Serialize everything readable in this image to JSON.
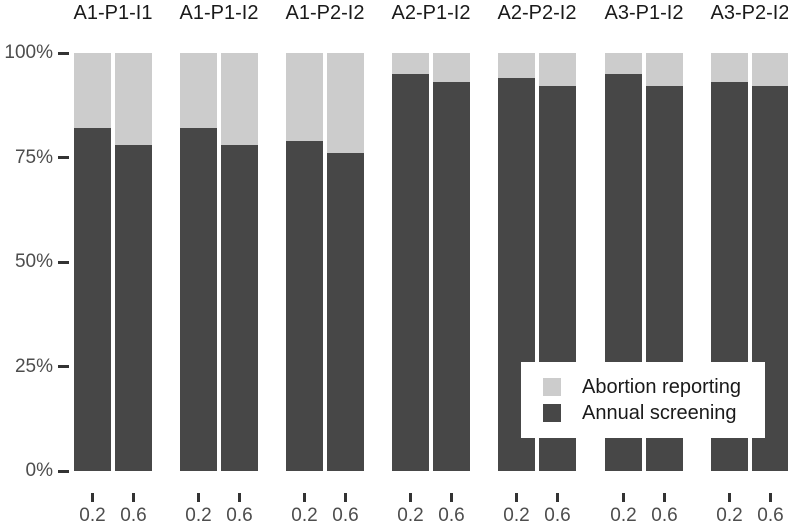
{
  "chart_data": {
    "type": "bar",
    "stacked": true,
    "percent_scale": true,
    "title": "",
    "xlabel": "",
    "ylabel": "",
    "facets": [
      "A1-P1-I1",
      "A1-P1-I2",
      "A1-P2-I2",
      "A2-P1-I2",
      "A2-P2-I2",
      "A3-P1-I2",
      "A3-P2-I2"
    ],
    "x_categories": [
      "0.2",
      "0.6"
    ],
    "series": [
      {
        "name": "Annual screening",
        "color": "#474747",
        "values": [
          [
            82,
            78
          ],
          [
            82,
            78
          ],
          [
            79,
            76
          ],
          [
            95,
            93
          ],
          [
            94,
            92
          ],
          [
            95,
            92
          ],
          [
            93,
            92
          ]
        ]
      },
      {
        "name": "Abortion reporting",
        "color": "#cccccc",
        "values": [
          [
            18,
            22
          ],
          [
            18,
            22
          ],
          [
            21,
            24
          ],
          [
            5,
            7
          ],
          [
            6,
            8
          ],
          [
            5,
            8
          ],
          [
            7,
            8
          ]
        ]
      }
    ],
    "y_ticks": [
      "100%",
      "75%",
      "50%",
      "25%",
      "0%"
    ],
    "y_tick_values": [
      100,
      75,
      50,
      25,
      0
    ],
    "ylim": [
      0,
      100
    ],
    "grid": false,
    "legend_position": "inside-bottom-right"
  },
  "legend": {
    "items": [
      {
        "label": "Abortion reporting",
        "color": "#cccccc"
      },
      {
        "label": "Annual screening",
        "color": "#474747"
      }
    ]
  },
  "colors": {
    "annual_screening": "#474747",
    "abortion_reporting": "#cccccc",
    "axis_text": "#4d4d4d",
    "strip_text": "#1a1a1a",
    "tick": "#333333",
    "background": "#ffffff"
  }
}
